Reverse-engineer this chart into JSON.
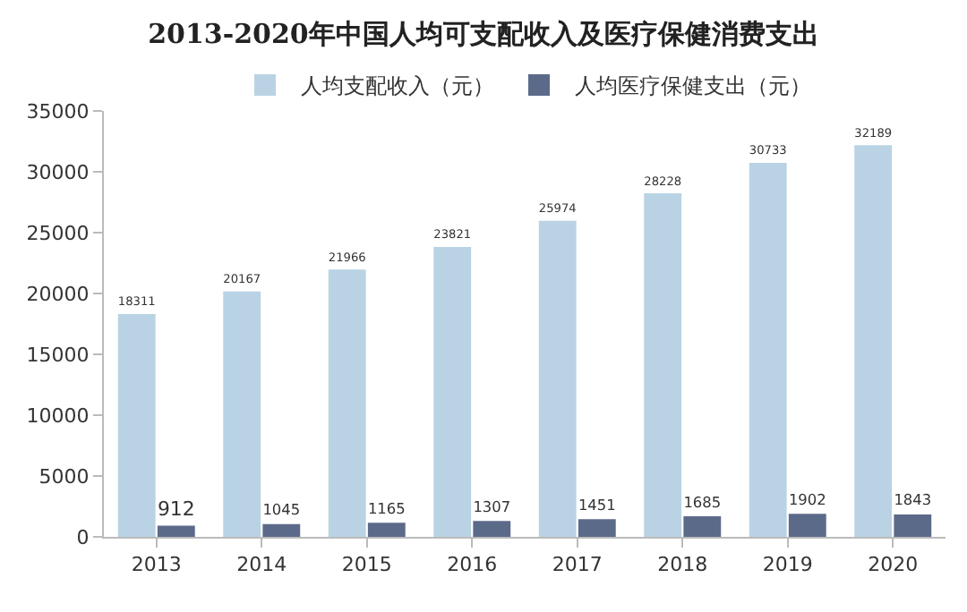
{
  "chart_data": {
    "type": "bar",
    "title": "2013-2020年中国人均可支配收入及医疗保健消费支出",
    "categories": [
      "2013",
      "2014",
      "2015",
      "2016",
      "2017",
      "2018",
      "2019",
      "2020"
    ],
    "series": [
      {
        "name": "人均支配收入（元）",
        "color": "#b9d3e4",
        "values": [
          18311,
          20167,
          21966,
          23821,
          25974,
          28228,
          30733,
          32189
        ]
      },
      {
        "name": "人均医疗保健支出（元）",
        "color": "#5c6a8a",
        "values": [
          912,
          1045,
          1165,
          1307,
          1451,
          1685,
          1902,
          1843
        ]
      }
    ],
    "ylim": [
      0,
      35000
    ],
    "yticks": [
      0,
      5000,
      10000,
      15000,
      20000,
      25000,
      30000,
      35000
    ],
    "grid": false,
    "legend": "top",
    "data_labels": true
  }
}
